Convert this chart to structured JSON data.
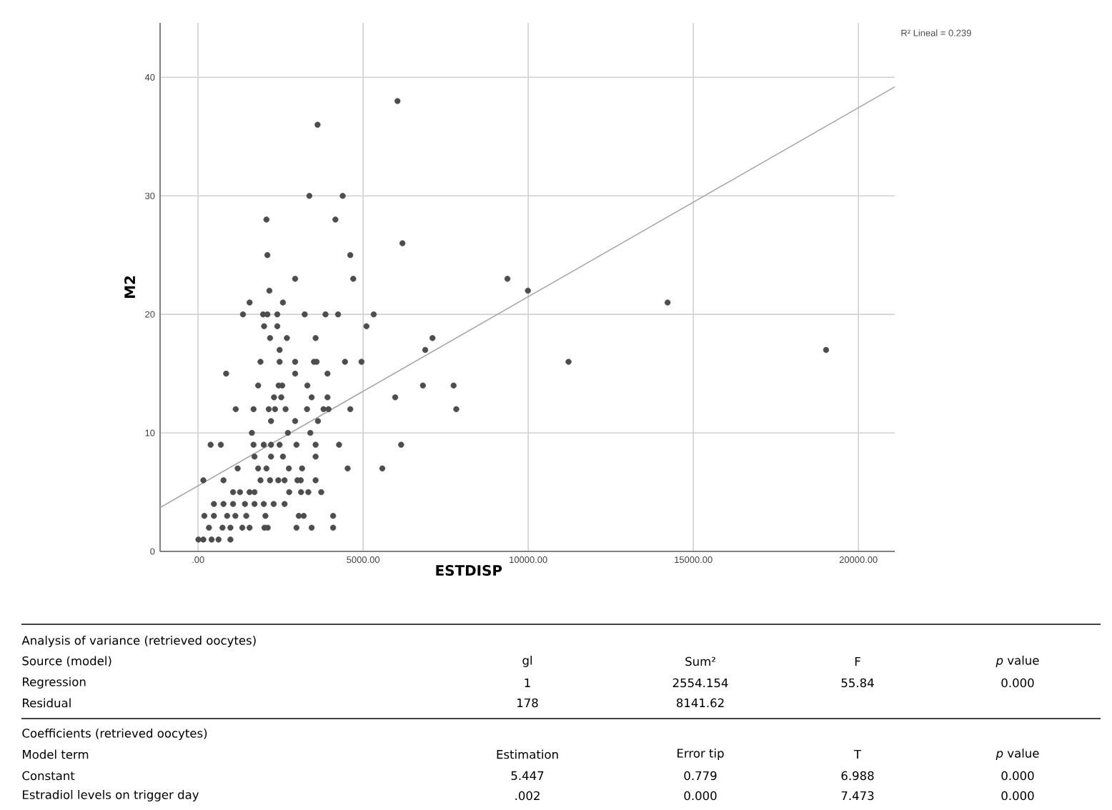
{
  "chart_data": {
    "type": "scatter",
    "xlabel": "ESTDISP",
    "ylabel": "M2",
    "xlim": [
      -1150,
      21100
    ],
    "ylim": [
      0,
      44.6
    ],
    "xticks": [
      {
        "value": 0,
        "label": ".00"
      },
      {
        "value": 5000,
        "label": "5000.00"
      },
      {
        "value": 10000,
        "label": "10000.00"
      },
      {
        "value": 15000,
        "label": "15000.00"
      },
      {
        "value": 20000,
        "label": "20000.00"
      }
    ],
    "yticks": [
      0,
      10,
      20,
      30,
      40
    ],
    "grid": true,
    "series": [
      {
        "color": "#4d4d4d",
        "marker": "circle",
        "x": [
          6040,
          3620,
          3370,
          4380,
          4160,
          2070,
          6190,
          2100,
          4610,
          2940,
          4700,
          9370,
          2160,
          9990,
          1560,
          2570,
          14220,
          1360,
          1970,
          2100,
          2400,
          3230,
          3860,
          4240,
          5320,
          5100,
          2000,
          2400,
          2180,
          2690,
          3560,
          7100,
          2470,
          6880,
          19020,
          1890,
          2470,
          2940,
          3510,
          3590,
          4450,
          4950,
          11220,
          850,
          2940,
          3920,
          1820,
          2440,
          2550,
          3310,
          6810,
          7740,
          2300,
          2520,
          3440,
          3920,
          5970,
          1140,
          1680,
          2140,
          2330,
          2650,
          3300,
          3800,
          3950,
          4610,
          7820,
          2210,
          2940,
          3630,
          1630,
          2720,
          3400,
          380,
          690,
          1680,
          1990,
          2210,
          2470,
          2980,
          3560,
          4270,
          6150,
          1710,
          2210,
          2570,
          3560,
          1200,
          1820,
          2070,
          2750,
          3150,
          4530,
          5580,
          160,
          770,
          1890,
          2180,
          2430,
          2620,
          3010,
          3110,
          3560,
          1060,
          1270,
          1560,
          1710,
          2760,
          3120,
          3340,
          3730,
          480,
          770,
          1060,
          1420,
          1710,
          1990,
          2290,
          2620,
          190,
          480,
          880,
          1130,
          1460,
          2040,
          3050,
          3200,
          4090,
          330,
          740,
          980,
          1340,
          1560,
          2010,
          2110,
          2980,
          3440,
          4090,
          10,
          160,
          410,
          620,
          980
        ],
        "values": [
          38,
          36,
          30,
          30,
          28,
          28,
          26,
          25,
          25,
          23,
          23,
          23,
          22,
          22,
          21,
          21,
          21,
          20,
          20,
          20,
          20,
          20,
          20,
          20,
          20,
          19,
          19,
          19,
          18,
          18,
          18,
          18,
          17,
          17,
          17,
          16,
          16,
          16,
          16,
          16,
          16,
          16,
          16,
          15,
          15,
          15,
          14,
          14,
          14,
          14,
          14,
          14,
          13,
          13,
          13,
          13,
          13,
          12,
          12,
          12,
          12,
          12,
          12,
          12,
          12,
          12,
          12,
          11,
          11,
          11,
          10,
          10,
          10,
          9,
          9,
          9,
          9,
          9,
          9,
          9,
          9,
          9,
          9,
          8,
          8,
          8,
          8,
          7,
          7,
          7,
          7,
          7,
          7,
          7,
          6,
          6,
          6,
          6,
          6,
          6,
          6,
          6,
          6,
          5,
          5,
          5,
          5,
          5,
          5,
          5,
          5,
          4,
          4,
          4,
          4,
          4,
          4,
          4,
          4,
          3,
          3,
          3,
          3,
          3,
          3,
          3,
          3,
          3,
          2,
          2,
          2,
          2,
          2,
          2,
          2,
          2,
          2,
          2,
          1,
          1,
          1,
          1,
          1
        ]
      },
      {
        "type": "line",
        "marker": "none",
        "color": "#a6a6a6",
        "x": [
          -1150,
          21100
        ],
        "values": [
          3.7,
          39.2
        ]
      }
    ],
    "annotations": [
      "R² Lineal = 0.239",
      "Analysis of variance (retrieved oocytes)",
      "Source (model)",
      "gl",
      "Sum²",
      "F",
      "*p* value",
      "Regression",
      "1",
      "2554.154",
      "55.84",
      "0.000",
      "Residual",
      "178",
      "8141.62",
      "Coefficients (retrieved oocytes)",
      "Model term",
      "Estimation",
      "Error tip",
      "T",
      "*p* value",
      "Constant",
      "5.447",
      "0.779",
      "6.988",
      "0.000",
      "Estradiol levels on trigger day",
      ".002",
      "0.000",
      "7.473",
      "0.000"
    ]
  }
}
